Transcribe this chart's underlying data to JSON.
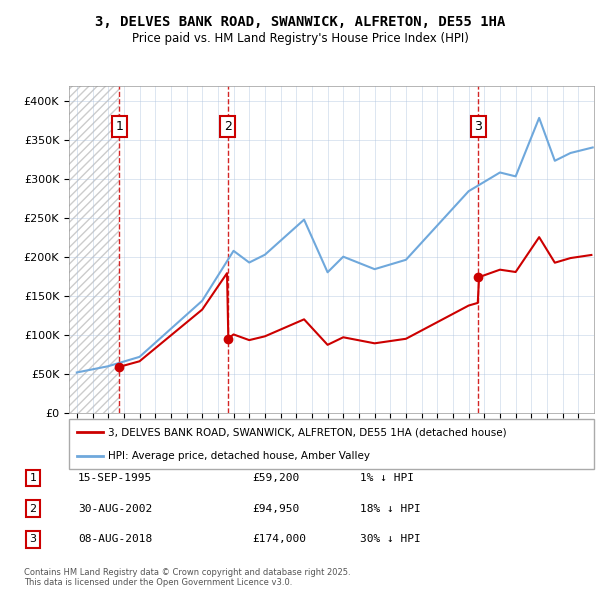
{
  "title_line1": "3, DELVES BANK ROAD, SWANWICK, ALFRETON, DE55 1HA",
  "title_line2": "Price paid vs. HM Land Registry's House Price Index (HPI)",
  "sale_prices": [
    59200,
    94950,
    174000
  ],
  "sale_labels": [
    "1",
    "2",
    "3"
  ],
  "hpi_color": "#6fa8dc",
  "sale_color": "#cc0000",
  "grid_color": "#b0c4de",
  "legend_sale_label": "3, DELVES BANK ROAD, SWANWICK, ALFRETON, DE55 1HA (detached house)",
  "legend_hpi_label": "HPI: Average price, detached house, Amber Valley",
  "table_entries": [
    {
      "num": "1",
      "date": "15-SEP-1995",
      "price": "£59,200",
      "pct": "1% ↓ HPI"
    },
    {
      "num": "2",
      "date": "30-AUG-2002",
      "price": "£94,950",
      "pct": "18% ↓ HPI"
    },
    {
      "num": "3",
      "date": "08-AUG-2018",
      "price": "£174,000",
      "pct": "30% ↓ HPI"
    }
  ],
  "footer": "Contains HM Land Registry data © Crown copyright and database right 2025.\nThis data is licensed under the Open Government Licence v3.0.",
  "ylim": [
    0,
    420000
  ],
  "xlim_start": 1992.5,
  "xlim_end": 2026.0
}
